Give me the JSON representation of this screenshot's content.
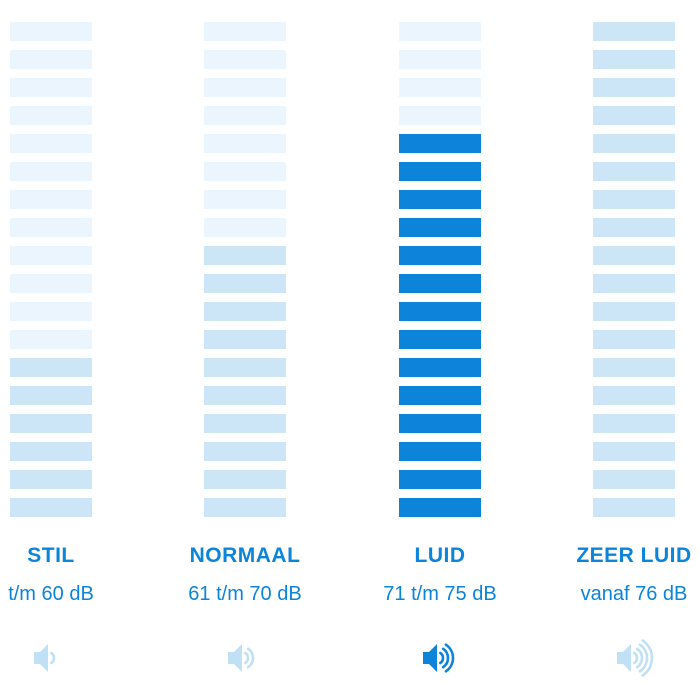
{
  "levels": [
    {
      "label": "STIL",
      "range": "t/m 60 dB",
      "active": false,
      "filled_segments": 6,
      "total_segments": 18,
      "icon": "speaker-icon",
      "waves": 1
    },
    {
      "label": "NORMAAL",
      "range": "61 t/m 70 dB",
      "active": false,
      "filled_segments": 10,
      "total_segments": 18,
      "icon": "speaker-icon",
      "waves": 2
    },
    {
      "label": "LUID",
      "range": "71 t/m 75 dB",
      "active": true,
      "filled_segments": 14,
      "total_segments": 18,
      "icon": "speaker-icon",
      "waves": 3
    },
    {
      "label": "ZEER LUID",
      "range": "vanaf 76 dB",
      "active": false,
      "filled_segments": 18,
      "total_segments": 18,
      "icon": "speaker-icon",
      "waves": 4
    }
  ],
  "colors": {
    "accent": "#0b84da",
    "faint": "#ebf5fd",
    "light": "#cde6f7",
    "icon_light": "#bfe0f5"
  }
}
